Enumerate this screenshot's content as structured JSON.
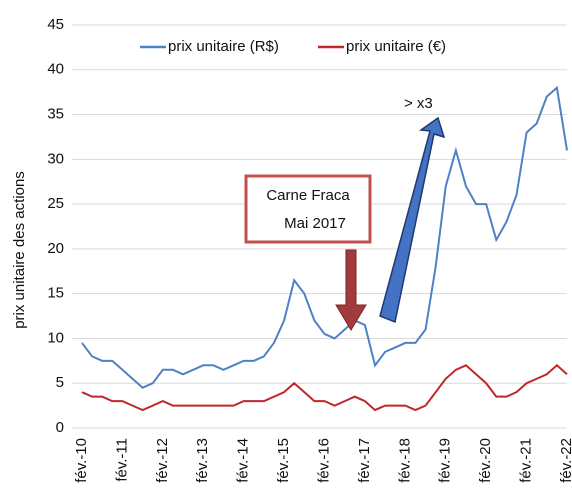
{
  "chart_data": {
    "type": "line",
    "ylabel": "prix unitaire des actions",
    "categories": [
      "fév.-10",
      null,
      null,
      null,
      "fév.-11",
      null,
      null,
      null,
      "fév.-12",
      null,
      null,
      null,
      "fév.-13",
      null,
      null,
      null,
      "fév.-14",
      null,
      null,
      null,
      "fév.-15",
      null,
      null,
      null,
      "fév.-16",
      null,
      null,
      null,
      "fév.-17",
      null,
      null,
      null,
      "fév.-18",
      null,
      null,
      null,
      "fév.-19",
      null,
      null,
      null,
      "fév.-20",
      null,
      null,
      null,
      "fév.-21",
      null,
      null,
      null,
      "fév.-22"
    ],
    "series": [
      {
        "name": "prix unitaire (R$)",
        "color": "#4f81c7",
        "values": [
          9.5,
          8,
          7.5,
          7.5,
          6.5,
          5.5,
          4.5,
          5,
          6.5,
          6.5,
          6,
          6.5,
          7,
          7,
          6.5,
          7,
          7.5,
          7.5,
          8,
          9.5,
          12,
          16.5,
          15,
          12,
          10.5,
          10,
          11,
          12,
          11.5,
          7,
          8.5,
          9,
          9.5,
          9.5,
          11,
          18,
          27,
          31,
          27,
          25,
          25,
          21,
          23,
          26,
          33,
          34,
          37,
          38,
          31
        ]
      },
      {
        "name": "prix unitaire (€)",
        "color": "#c0262b",
        "values": [
          4,
          3.5,
          3.5,
          3,
          3,
          2.5,
          2,
          2.5,
          3,
          2.5,
          2.5,
          2.5,
          2.5,
          2.5,
          2.5,
          2.5,
          3,
          3,
          3,
          3.5,
          4,
          5,
          4,
          3,
          3,
          2.5,
          3,
          3.5,
          3,
          2,
          2.5,
          2.5,
          2.5,
          2,
          2.5,
          4,
          5.5,
          6.5,
          7,
          6,
          5,
          3.5,
          3.5,
          4,
          5,
          5.5,
          6,
          7,
          6
        ]
      }
    ],
    "ylim": [
      0,
      45
    ],
    "yticks": [
      0,
      5,
      10,
      15,
      20,
      25,
      30,
      35,
      40,
      45
    ],
    "grid": true,
    "annotations": {
      "box": [
        "Carne Fraca",
        "Mai 2017"
      ],
      "growth": "> x3"
    }
  }
}
